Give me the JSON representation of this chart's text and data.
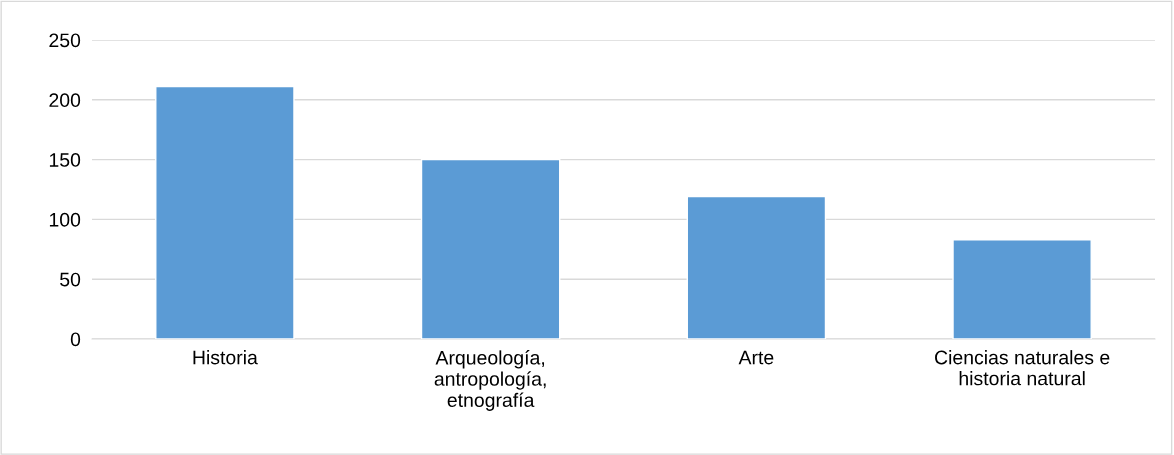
{
  "chart_data": {
    "type": "bar",
    "categories": [
      "Historia",
      "Arqueología, antropología, etnografía",
      "Arte",
      "Ciencias naturales e historia natural"
    ],
    "values": [
      211,
      150,
      119,
      83
    ],
    "color": "#5b9bd5",
    "ylim": [
      0,
      250
    ],
    "yticks": [
      0,
      50,
      100,
      150,
      200,
      250
    ],
    "grid": "y",
    "legend": false
  }
}
